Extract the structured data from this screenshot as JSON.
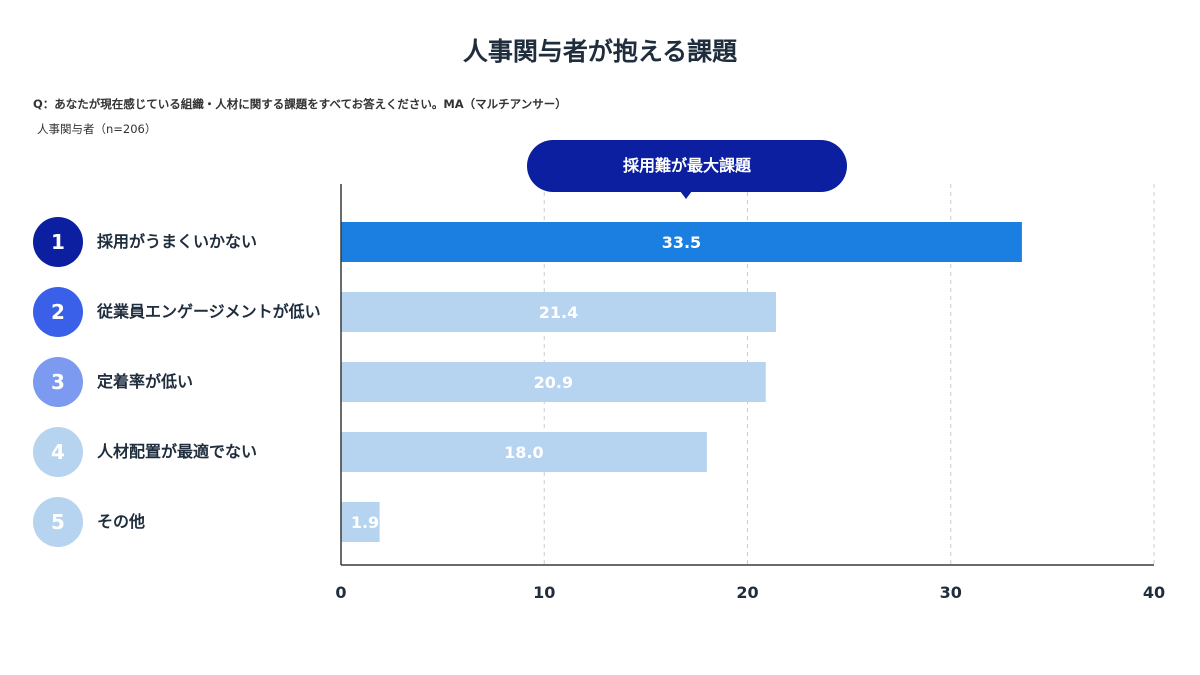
{
  "title": "人事関与者が抱える課題",
  "question": "Q：あなたが現在感じている組織・人材に関する課題をすべてお答えください。MA（マルチアンサー）",
  "sample": "人事関与者（n=206）",
  "callout": "採用難が最大課題",
  "colors": {
    "highlight_bar": "#1a7fe0",
    "other_bar": "#b6d3f0",
    "callout_bg": "#0b1fa0",
    "rank_colors": [
      "#0b1fa0",
      "#3a5fe8",
      "#7b9af0",
      "#b6d3f0",
      "#b6d3f0"
    ]
  },
  "chart_data": {
    "type": "bar",
    "orientation": "horizontal",
    "categories": [
      "採用がうまくいかない",
      "従業員エンゲージメントが低い",
      "定着率が低い",
      "人材配置が最適でない",
      "その他"
    ],
    "ranks": [
      "1",
      "2",
      "3",
      "4",
      "5"
    ],
    "values": [
      33.5,
      21.4,
      20.9,
      18.0,
      1.9
    ],
    "value_labels": [
      "33.5",
      "21.4",
      "20.9",
      "18.0",
      "1.9"
    ],
    "xlim": [
      0,
      40
    ],
    "xticks": [
      0,
      10,
      20,
      30,
      40
    ],
    "xtick_labels": [
      "0",
      "10",
      "20",
      "30",
      "40"
    ],
    "grid": true,
    "highlight_index": 0
  }
}
